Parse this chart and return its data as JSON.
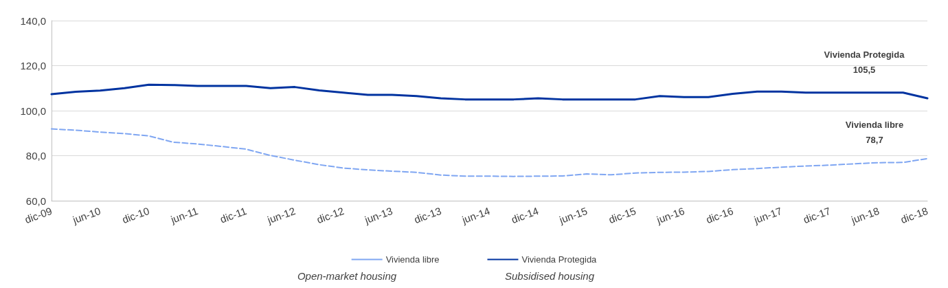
{
  "chart_data": {
    "type": "line",
    "categories": [
      "dic-09",
      null,
      "jun-10",
      null,
      "dic-10",
      null,
      "jun-11",
      null,
      "dic-11",
      null,
      "jun-12",
      null,
      "dic-12",
      null,
      "jun-13",
      null,
      "dic-13",
      null,
      "jun-14",
      null,
      "dic-14",
      null,
      "jun-15",
      null,
      "dic-15",
      null,
      "jun-16",
      null,
      "dic-16",
      null,
      "jun-17",
      null,
      "dic-17",
      null,
      "jun-18",
      null,
      "dic-18"
    ],
    "series": [
      {
        "name": "Vivienda libre",
        "color": "#7fa6f2",
        "line_style": "dashed",
        "values": [
          91.9,
          91.3,
          90.5,
          89.8,
          88.8,
          86,
          85.2,
          84.1,
          82.9,
          80.1,
          78,
          76,
          74.5,
          73.7,
          73.1,
          72.6,
          71.4,
          70.9,
          70.9,
          70.8,
          70.9,
          71,
          71.9,
          71.5,
          72.3,
          72.6,
          72.7,
          73,
          73.8,
          74.3,
          74.9,
          75.4,
          75.8,
          76.4,
          76.9,
          77,
          78.7
        ]
      },
      {
        "name": "Vivienda Protegida",
        "color": "#0033a0",
        "line_style": "solid",
        "values": [
          107.3,
          108.4,
          108.9,
          110,
          111.5,
          111.4,
          111,
          111,
          111,
          110,
          110.5,
          109,
          108,
          107,
          107,
          106.5,
          105.5,
          105,
          105,
          105,
          105.5,
          105,
          105,
          105,
          105,
          106.5,
          106,
          106,
          107.5,
          108.5,
          108.5,
          108,
          108,
          108,
          108,
          108,
          105.5
        ]
      }
    ],
    "ylim": [
      60,
      140
    ],
    "yticks": [
      {
        "value": 60,
        "label": "60,0"
      },
      {
        "value": 80,
        "label": "80,0"
      },
      {
        "value": 100,
        "label": "100,0"
      },
      {
        "value": 120,
        "label": "120,0"
      },
      {
        "value": 140,
        "label": "140,0"
      }
    ],
    "grid": "y",
    "legend": "bottom",
    "marker": "none",
    "annotations": [
      "Vivienda Protegida\n105,5",
      "Vivienda libre\n78,7",
      "Open-market housing",
      "Subsidised housing"
    ]
  }
}
